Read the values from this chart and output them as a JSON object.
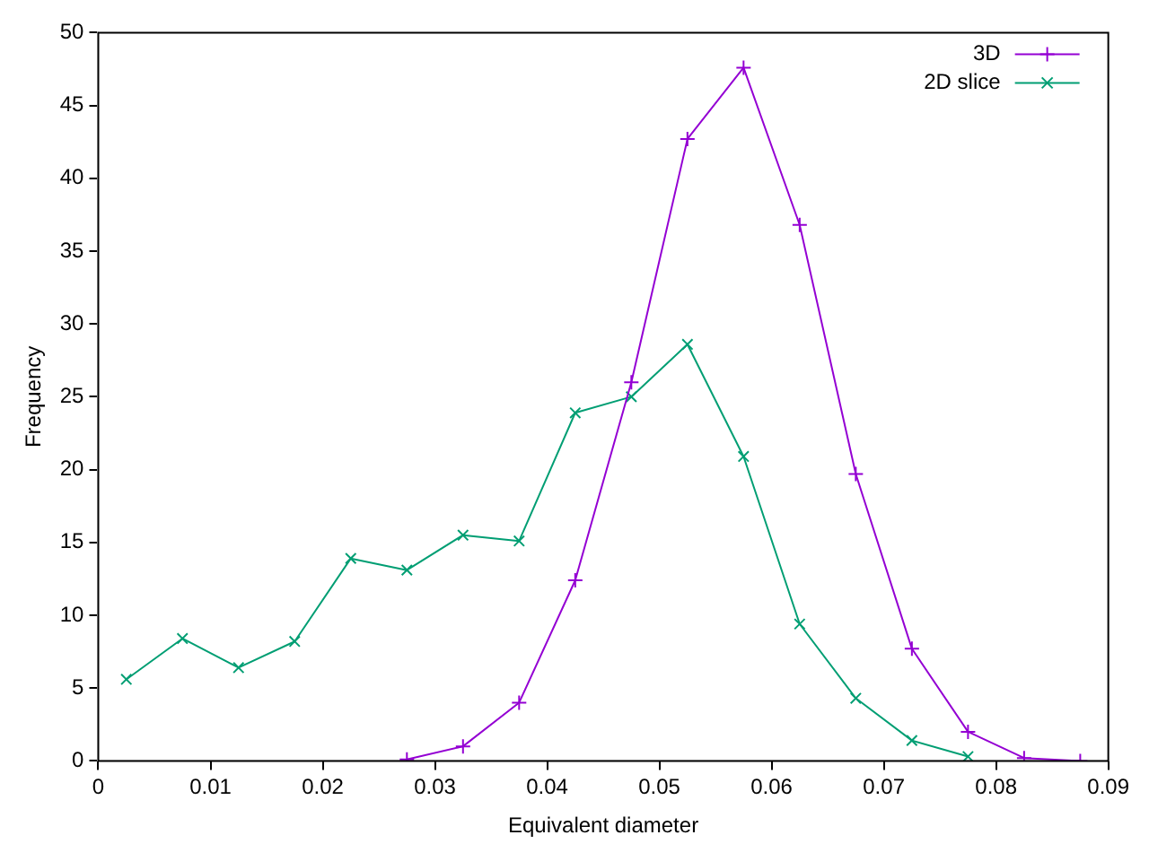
{
  "chart_data": {
    "type": "line",
    "xlabel": "Equivalent diameter",
    "ylabel": "Frequency",
    "xlim": [
      0,
      0.09
    ],
    "xticks": [
      0,
      0.01,
      0.02,
      0.03,
      0.04,
      0.05,
      0.06,
      0.07,
      0.08,
      0.09
    ],
    "ylim": [
      0,
      50
    ],
    "yticks": [
      0,
      5,
      10,
      15,
      20,
      25,
      30,
      35,
      40,
      45,
      50
    ],
    "grid": false,
    "legend": "top right",
    "series": [
      {
        "name": "3D",
        "color": "#9400d3",
        "marker": "plus",
        "x": [
          0.0275,
          0.0325,
          0.0375,
          0.0425,
          0.0475,
          0.0525,
          0.0575,
          0.0625,
          0.0675,
          0.0725,
          0.0775,
          0.0825,
          0.0875
        ],
        "values": [
          0.1,
          1.0,
          4.0,
          12.4,
          26.0,
          42.7,
          47.6,
          36.8,
          19.7,
          7.7,
          2.0,
          0.2,
          0
        ]
      },
      {
        "name": "2D slice",
        "color": "#009e73",
        "marker": "cross",
        "x": [
          0.0025,
          0.0075,
          0.0125,
          0.0175,
          0.0225,
          0.0275,
          0.0325,
          0.0375,
          0.0425,
          0.0475,
          0.0525,
          0.0575,
          0.0625,
          0.0675,
          0.0725,
          0.0775
        ],
        "values": [
          5.6,
          8.4,
          6.4,
          8.2,
          13.9,
          13.1,
          15.5,
          15.1,
          23.9,
          25.0,
          28.6,
          20.9,
          9.4,
          4.3,
          1.4,
          0.3
        ]
      }
    ]
  }
}
